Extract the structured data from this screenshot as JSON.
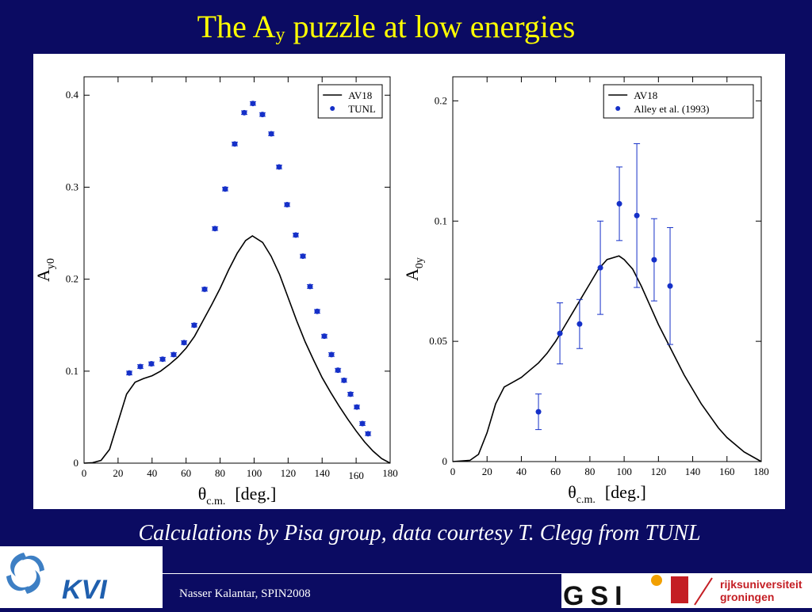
{
  "slide": {
    "title": {
      "text": "The A",
      "sub": "y",
      "rest": " puzzle at low energies"
    },
    "caption": "Calculations by Pisa group, data courtesy T. Clegg from TUNL",
    "footer": "Nasser Kalantar, SPIN2008",
    "logos": {
      "left": "KVI",
      "middle": "GSI",
      "right_line1": "rijksuniversiteit",
      "right_line2": "groningen"
    }
  },
  "chart_data": [
    {
      "type": "line",
      "xlabel": {
        "main": "θ",
        "sub": "c.m.",
        "unit": "[deg.]"
      },
      "ylabel": {
        "main": "A",
        "sub": "y0"
      },
      "xlim": [
        0,
        180
      ],
      "xticks": [
        0,
        20,
        40,
        60,
        80,
        100,
        120,
        140,
        160,
        180
      ],
      "ylim": [
        0,
        0.42
      ],
      "yticks": [
        0,
        0.1,
        0.2,
        0.3,
        0.4
      ],
      "legend": "upper right",
      "series": [
        {
          "name": "AV18",
          "style": "line",
          "color": "#000000",
          "x": [
            0,
            5,
            10,
            15,
            20,
            25,
            30,
            35,
            40,
            45,
            50,
            55,
            60,
            65,
            70,
            75,
            80,
            85,
            90,
            95,
            99,
            105,
            110,
            115,
            120,
            125,
            130,
            135,
            140,
            145,
            150,
            155,
            160,
            165,
            170,
            175,
            180
          ],
          "values": [
            0,
            0.0005,
            0.003,
            0.015,
            0.045,
            0.075,
            0.088,
            0.092,
            0.095,
            0.1,
            0.107,
            0.115,
            0.125,
            0.138,
            0.155,
            0.172,
            0.19,
            0.21,
            0.228,
            0.242,
            0.247,
            0.24,
            0.225,
            0.205,
            0.18,
            0.155,
            0.132,
            0.112,
            0.093,
            0.077,
            0.062,
            0.048,
            0.035,
            0.023,
            0.013,
            0.005,
            0
          ]
        },
        {
          "name": "TUNL",
          "style": "markers",
          "color": "#1530c8",
          "x": [
            26.6,
            33.1,
            39.6,
            46.2,
            52.7,
            58.8,
            64.8,
            70.9,
            77.0,
            83.0,
            88.6,
            94.2,
            99.3,
            104.9,
            110.1,
            114.7,
            119.4,
            124.5,
            128.7,
            132.9,
            137.1,
            141.3,
            145.5,
            149.3,
            152.9,
            156.7,
            160.4,
            163.7,
            167.0
          ],
          "values": [
            0.098,
            0.105,
            0.108,
            0.113,
            0.118,
            0.131,
            0.15,
            0.189,
            0.255,
            0.298,
            0.347,
            0.381,
            0.391,
            0.379,
            0.358,
            0.322,
            0.281,
            0.248,
            0.225,
            0.192,
            0.165,
            0.138,
            0.118,
            0.101,
            0.09,
            0.075,
            0.061,
            0.043,
            0.032
          ],
          "errors": [
            0.002,
            0.002,
            0.002,
            0.002,
            0.002,
            0.002,
            0.002,
            0.002,
            0.002,
            0.002,
            0.002,
            0.002,
            0.002,
            0.002,
            0.002,
            0.002,
            0.002,
            0.002,
            0.002,
            0.002,
            0.002,
            0.002,
            0.002,
            0.002,
            0.002,
            0.002,
            0.002,
            0.002,
            0.002
          ]
        }
      ]
    },
    {
      "type": "line",
      "xlabel": {
        "main": "θ",
        "sub": "c.m.",
        "unit": "[deg.]"
      },
      "ylabel": {
        "main": "A",
        "sub": "0y"
      },
      "xlim": [
        0,
        180
      ],
      "xticks": [
        0,
        20,
        40,
        60,
        80,
        100,
        120,
        140,
        160,
        180
      ],
      "ylim": [
        0,
        0.16
      ],
      "yticks": [
        0,
        0.05,
        0.1,
        {
          "value": 0.15,
          "label": "0.2"
        }
      ],
      "legend": "upper right",
      "series": [
        {
          "name": "AV18",
          "style": "line",
          "color": "#000000",
          "x": [
            0,
            10,
            15,
            20,
            25,
            30,
            35,
            40,
            45,
            50,
            55,
            60,
            65,
            70,
            75,
            80,
            85,
            90,
            97,
            100,
            105,
            110,
            115,
            120,
            125,
            130,
            135,
            140,
            145,
            150,
            155,
            160,
            170,
            180
          ],
          "values": [
            0,
            0.0005,
            0.003,
            0.012,
            0.024,
            0.031,
            0.033,
            0.035,
            0.038,
            0.041,
            0.045,
            0.05,
            0.056,
            0.062,
            0.068,
            0.074,
            0.08,
            0.084,
            0.0855,
            0.084,
            0.08,
            0.073,
            0.065,
            0.057,
            0.05,
            0.043,
            0.036,
            0.03,
            0.024,
            0.019,
            0.014,
            0.01,
            0.004,
            0
          ]
        },
        {
          "name": "Alley et al. (1993)",
          "style": "markers",
          "color": "#1530c8",
          "x": [
            50.0,
            62.5,
            74.0,
            86.1,
            97.2,
            107.4,
            117.5,
            126.8
          ],
          "values": [
            0.0207,
            0.0533,
            0.0572,
            0.0806,
            0.1072,
            0.1023,
            0.0839,
            0.073
          ],
          "errors": [
            0.0074,
            0.0127,
            0.0102,
            0.0194,
            0.0153,
            0.0299,
            0.0171,
            0.0243
          ]
        }
      ]
    }
  ]
}
